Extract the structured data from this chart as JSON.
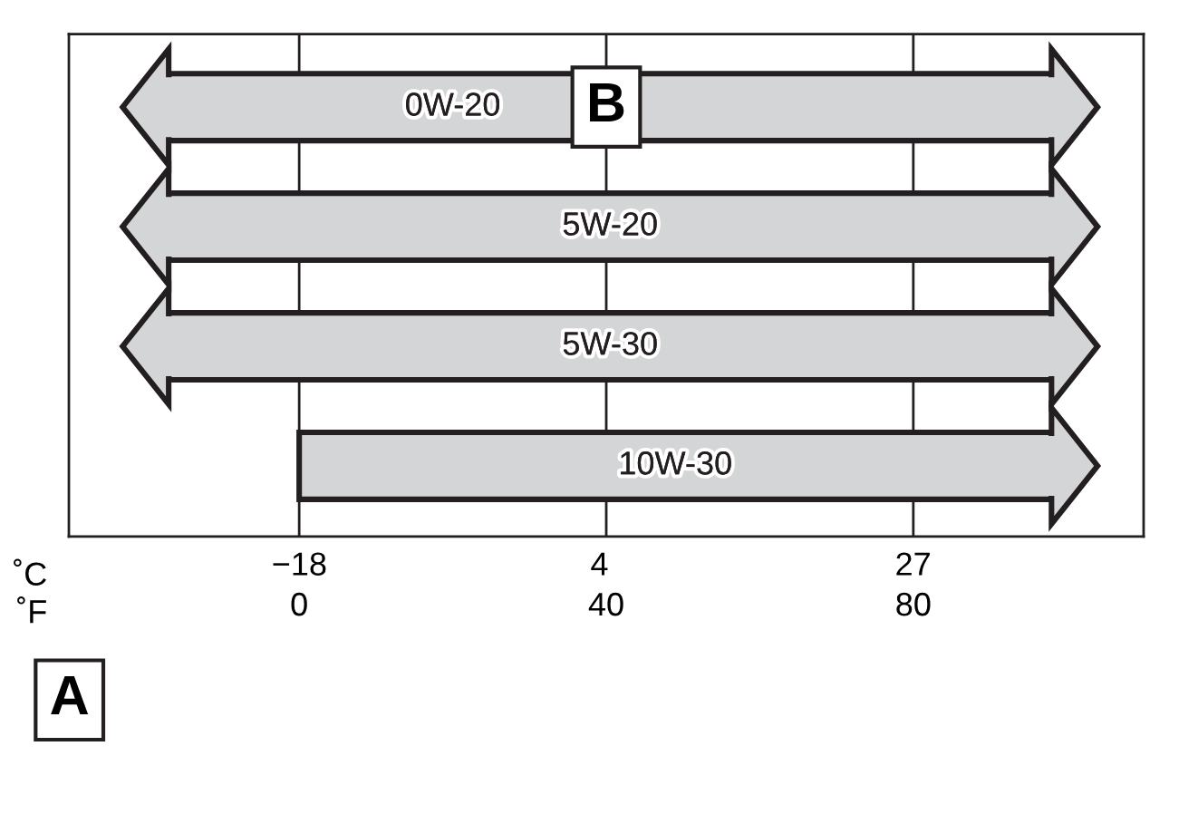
{
  "chart_data": {
    "type": "bar",
    "orientation": "horizontal",
    "categories": [
      "0W-20",
      "5W-20",
      "5W-30",
      "10W-30"
    ],
    "base": [
      -17,
      -17,
      -17,
      0
    ],
    "values": [
      115,
      115,
      115,
      98
    ],
    "color": "#d4d5d7",
    "xlabel": "˚F",
    "x2label": "˚C",
    "xlim": [
      -30,
      110
    ],
    "xticks": [
      0,
      40,
      80
    ],
    "x2lim": [
      -34.9,
      43.9
    ],
    "x2ticks": [
      {
        "value": -18,
        "label": "−18"
      },
      4,
      27
    ],
    "grid": "x",
    "annotations": [
      "B",
      "A"
    ]
  }
}
